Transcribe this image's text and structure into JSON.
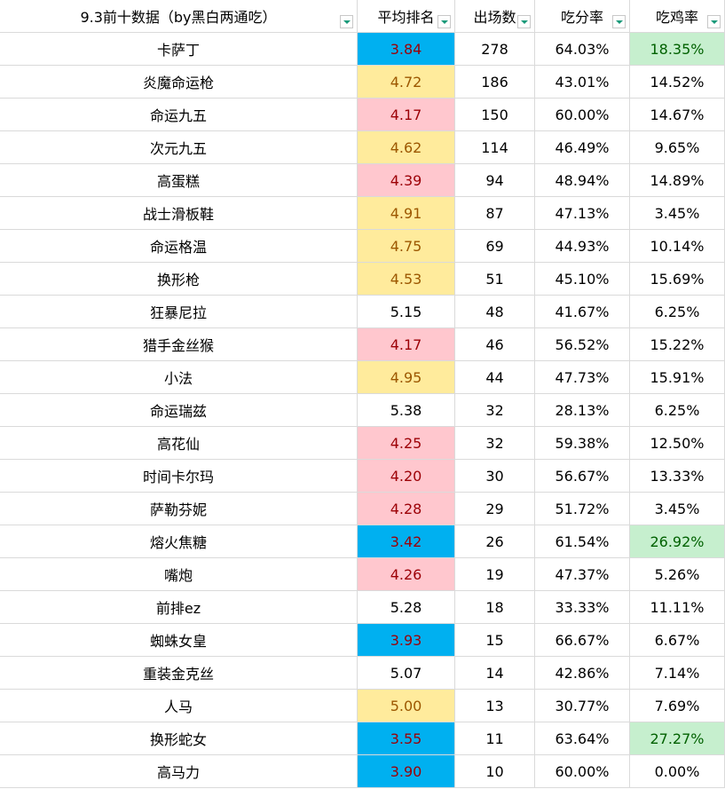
{
  "table": {
    "header": [
      "9.3前十数据（by黑白两通吃）",
      "平均排名",
      "出场数",
      "吃分率",
      "吃鸡率"
    ],
    "rows": [
      [
        "卡萨丁",
        "3.84",
        "278",
        "64.03%",
        "18.35%"
      ],
      [
        "炎魔命运枪",
        "4.72",
        "186",
        "43.01%",
        "14.52%"
      ],
      [
        "命运九五",
        "4.17",
        "150",
        "60.00%",
        "14.67%"
      ],
      [
        "次元九五",
        "4.62",
        "114",
        "46.49%",
        "9.65%"
      ],
      [
        "高蛋糕",
        "4.39",
        "94",
        "48.94%",
        "14.89%"
      ],
      [
        "战士滑板鞋",
        "4.91",
        "87",
        "47.13%",
        "3.45%"
      ],
      [
        "命运格温",
        "4.75",
        "69",
        "44.93%",
        "10.14%"
      ],
      [
        "换形枪",
        "4.53",
        "51",
        "45.10%",
        "15.69%"
      ],
      [
        "狂暴尼拉",
        "5.15",
        "48",
        "41.67%",
        "6.25%"
      ],
      [
        "猎手金丝猴",
        "4.17",
        "46",
        "56.52%",
        "15.22%"
      ],
      [
        "小法",
        "4.95",
        "44",
        "47.73%",
        "15.91%"
      ],
      [
        "命运瑞兹",
        "5.38",
        "32",
        "28.13%",
        "6.25%"
      ],
      [
        "高花仙",
        "4.25",
        "32",
        "59.38%",
        "12.50%"
      ],
      [
        "时间卡尔玛",
        "4.20",
        "30",
        "56.67%",
        "13.33%"
      ],
      [
        "萨勒芬妮",
        "4.28",
        "29",
        "51.72%",
        "3.45%"
      ],
      [
        "熔火焦糖",
        "3.42",
        "26",
        "61.54%",
        "26.92%"
      ],
      [
        "嘴炮",
        "4.26",
        "19",
        "47.37%",
        "5.26%"
      ],
      [
        "前排ez",
        "5.28",
        "18",
        "33.33%",
        "11.11%"
      ],
      [
        "蜘蛛女皇",
        "3.93",
        "15",
        "66.67%",
        "6.67%"
      ],
      [
        "重装金克丝",
        "5.07",
        "14",
        "42.86%",
        "7.14%"
      ],
      [
        "人马",
        "5.00",
        "13",
        "30.77%",
        "7.69%"
      ],
      [
        "换形蛇女",
        "3.55",
        "11",
        "63.64%",
        "27.27%"
      ],
      [
        "高马力",
        "3.90",
        "10",
        "60.00%",
        "0.00%"
      ]
    ],
    "rank_highlight": [
      "blue",
      "yellow",
      "pink",
      "yellow",
      "pink",
      "yellow",
      "yellow",
      "yellow",
      null,
      "pink",
      "yellow",
      null,
      "pink",
      "pink",
      "pink",
      "blue",
      "pink",
      null,
      "blue",
      null,
      "yellow",
      "blue",
      "blue"
    ],
    "win_highlight": [
      "green",
      null,
      null,
      null,
      null,
      null,
      null,
      null,
      null,
      null,
      null,
      null,
      null,
      null,
      null,
      "green",
      null,
      null,
      null,
      null,
      null,
      "green",
      null
    ]
  }
}
